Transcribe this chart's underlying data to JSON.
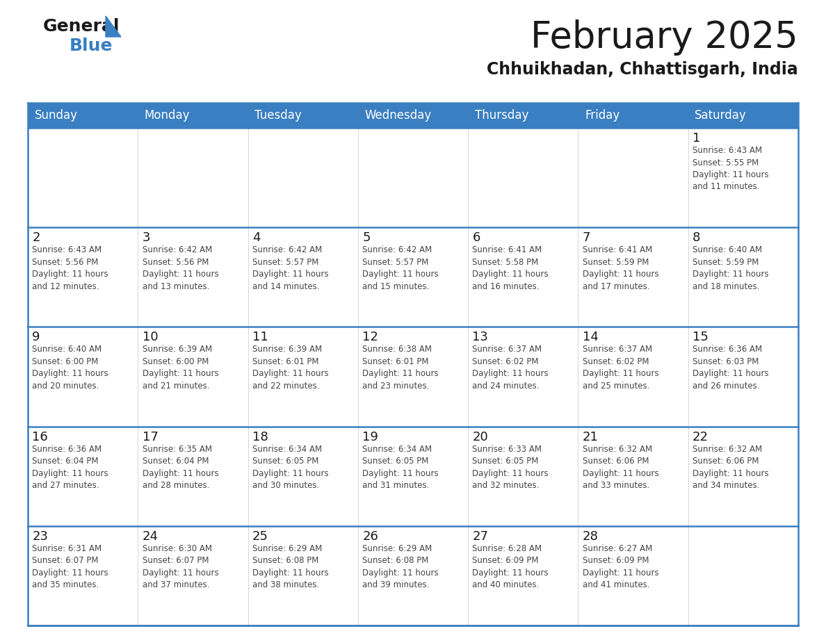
{
  "title": "February 2025",
  "subtitle": "Chhuikhadan, Chhattisgarh, India",
  "header_bg_color": "#3a7fc1",
  "header_text_color": "#ffffff",
  "cell_bg_color": "#ffffff",
  "day_number_color": "#1a1a1a",
  "cell_text_color": "#444444",
  "border_color": "#3a7fc1",
  "row_line_color": "#3a7fc1",
  "days_of_week": [
    "Sunday",
    "Monday",
    "Tuesday",
    "Wednesday",
    "Thursday",
    "Friday",
    "Saturday"
  ],
  "calendar_data": [
    [
      null,
      null,
      null,
      null,
      null,
      null,
      {
        "day": 1,
        "sunrise": "6:43 AM",
        "sunset": "5:55 PM",
        "daylight": "11 hours and 11 minutes."
      }
    ],
    [
      {
        "day": 2,
        "sunrise": "6:43 AM",
        "sunset": "5:56 PM",
        "daylight": "11 hours and 12 minutes."
      },
      {
        "day": 3,
        "sunrise": "6:42 AM",
        "sunset": "5:56 PM",
        "daylight": "11 hours and 13 minutes."
      },
      {
        "day": 4,
        "sunrise": "6:42 AM",
        "sunset": "5:57 PM",
        "daylight": "11 hours and 14 minutes."
      },
      {
        "day": 5,
        "sunrise": "6:42 AM",
        "sunset": "5:57 PM",
        "daylight": "11 hours and 15 minutes."
      },
      {
        "day": 6,
        "sunrise": "6:41 AM",
        "sunset": "5:58 PM",
        "daylight": "11 hours and 16 minutes."
      },
      {
        "day": 7,
        "sunrise": "6:41 AM",
        "sunset": "5:59 PM",
        "daylight": "11 hours and 17 minutes."
      },
      {
        "day": 8,
        "sunrise": "6:40 AM",
        "sunset": "5:59 PM",
        "daylight": "11 hours and 18 minutes."
      }
    ],
    [
      {
        "day": 9,
        "sunrise": "6:40 AM",
        "sunset": "6:00 PM",
        "daylight": "11 hours and 20 minutes."
      },
      {
        "day": 10,
        "sunrise": "6:39 AM",
        "sunset": "6:00 PM",
        "daylight": "11 hours and 21 minutes."
      },
      {
        "day": 11,
        "sunrise": "6:39 AM",
        "sunset": "6:01 PM",
        "daylight": "11 hours and 22 minutes."
      },
      {
        "day": 12,
        "sunrise": "6:38 AM",
        "sunset": "6:01 PM",
        "daylight": "11 hours and 23 minutes."
      },
      {
        "day": 13,
        "sunrise": "6:37 AM",
        "sunset": "6:02 PM",
        "daylight": "11 hours and 24 minutes."
      },
      {
        "day": 14,
        "sunrise": "6:37 AM",
        "sunset": "6:02 PM",
        "daylight": "11 hours and 25 minutes."
      },
      {
        "day": 15,
        "sunrise": "6:36 AM",
        "sunset": "6:03 PM",
        "daylight": "11 hours and 26 minutes."
      }
    ],
    [
      {
        "day": 16,
        "sunrise": "6:36 AM",
        "sunset": "6:04 PM",
        "daylight": "11 hours and 27 minutes."
      },
      {
        "day": 17,
        "sunrise": "6:35 AM",
        "sunset": "6:04 PM",
        "daylight": "11 hours and 28 minutes."
      },
      {
        "day": 18,
        "sunrise": "6:34 AM",
        "sunset": "6:05 PM",
        "daylight": "11 hours and 30 minutes."
      },
      {
        "day": 19,
        "sunrise": "6:34 AM",
        "sunset": "6:05 PM",
        "daylight": "11 hours and 31 minutes."
      },
      {
        "day": 20,
        "sunrise": "6:33 AM",
        "sunset": "6:05 PM",
        "daylight": "11 hours and 32 minutes."
      },
      {
        "day": 21,
        "sunrise": "6:32 AM",
        "sunset": "6:06 PM",
        "daylight": "11 hours and 33 minutes."
      },
      {
        "day": 22,
        "sunrise": "6:32 AM",
        "sunset": "6:06 PM",
        "daylight": "11 hours and 34 minutes."
      }
    ],
    [
      {
        "day": 23,
        "sunrise": "6:31 AM",
        "sunset": "6:07 PM",
        "daylight": "11 hours and 35 minutes."
      },
      {
        "day": 24,
        "sunrise": "6:30 AM",
        "sunset": "6:07 PM",
        "daylight": "11 hours and 37 minutes."
      },
      {
        "day": 25,
        "sunrise": "6:29 AM",
        "sunset": "6:08 PM",
        "daylight": "11 hours and 38 minutes."
      },
      {
        "day": 26,
        "sunrise": "6:29 AM",
        "sunset": "6:08 PM",
        "daylight": "11 hours and 39 minutes."
      },
      {
        "day": 27,
        "sunrise": "6:28 AM",
        "sunset": "6:09 PM",
        "daylight": "11 hours and 40 minutes."
      },
      {
        "day": 28,
        "sunrise": "6:27 AM",
        "sunset": "6:09 PM",
        "daylight": "11 hours and 41 minutes."
      },
      null
    ]
  ],
  "logo_general_color": "#1a1a1a",
  "logo_blue_color": "#3a7fc1",
  "logo_triangle_color": "#3a7fc1",
  "title_fontsize": 38,
  "subtitle_fontsize": 17,
  "header_fontsize": 12,
  "day_num_fontsize": 13,
  "cell_text_fontsize": 8.5
}
